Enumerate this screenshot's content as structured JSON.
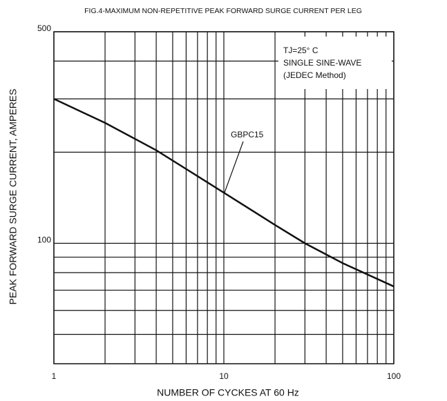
{
  "chart_data": {
    "type": "line",
    "title": "FIG.4-MAXIMUM NON-REPETITIVE PEAK FORWARD SURGE CURRENT PER LEG",
    "x_label": "NUMBER OF CYCKES AT 60 Hz",
    "y_label": "PEAK FORWARD SURGE CURRENT, AMPERES",
    "log_x": true,
    "log_y": true,
    "grid": true,
    "xlim": [
      1,
      100
    ],
    "xticks": [
      1,
      10,
      100
    ],
    "xminor": [
      2,
      3,
      4,
      5,
      6,
      7,
      8,
      9,
      20,
      30,
      40,
      50,
      60,
      70,
      80,
      90
    ],
    "ylim": [
      40,
      500
    ],
    "yticks": [
      100,
      500
    ],
    "yminor": [
      50,
      60,
      70,
      80,
      90,
      200,
      300,
      400
    ],
    "x": [
      1,
      2,
      4,
      10,
      20,
      30,
      50,
      100
    ],
    "series": [
      {
        "name": "GBPC15",
        "color": "#111111",
        "values": [
          300,
          250,
          203,
          147,
          115,
          100,
          86,
          72
        ]
      }
    ],
    "annotation": [
      "TJ=25° C",
      "SINGLE SINE-WAVE",
      "(JEDEC Method)"
    ]
  }
}
